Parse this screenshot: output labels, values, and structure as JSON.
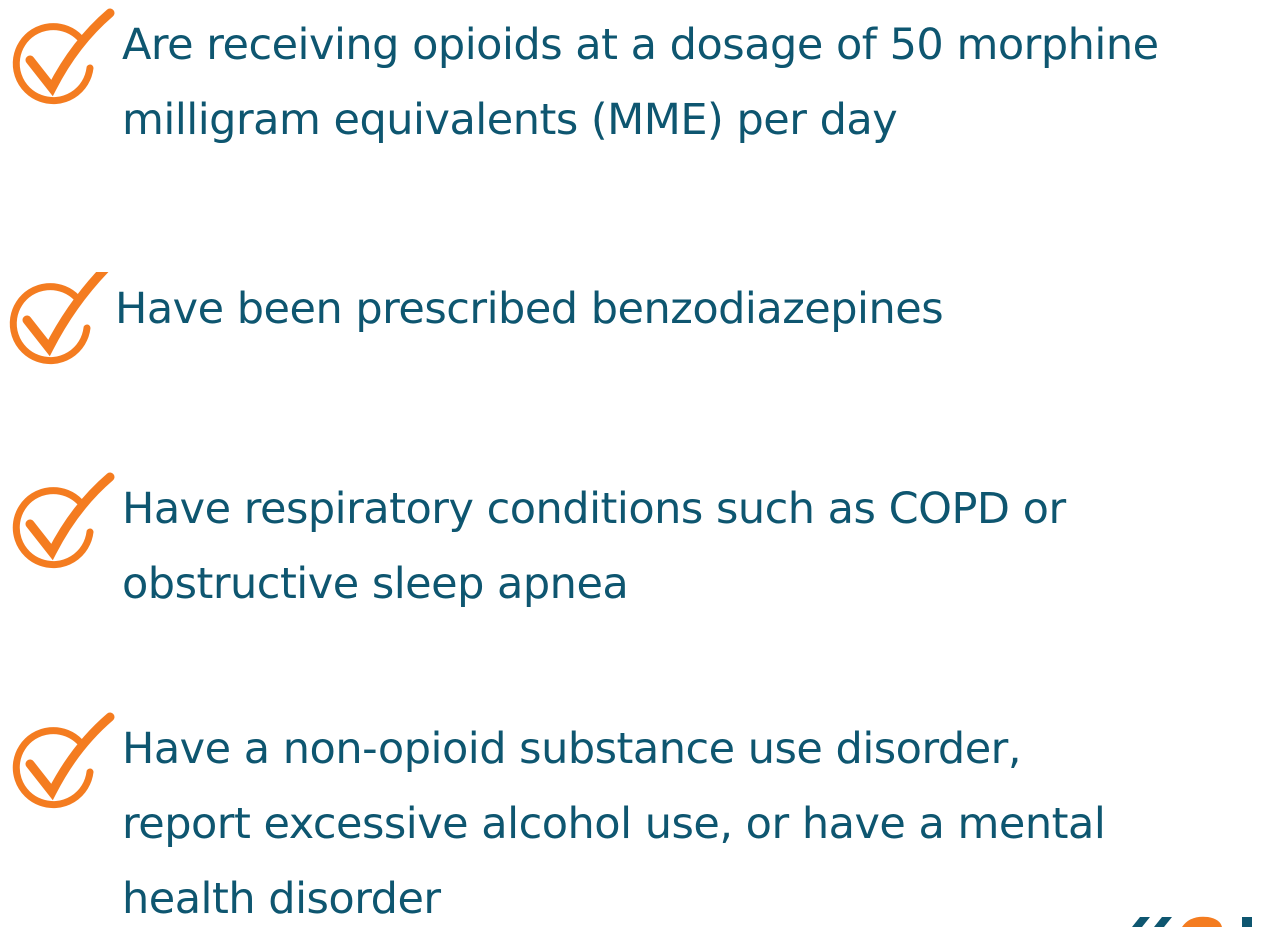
{
  "items": [
    {
      "lines": [
        "Are receiving opioids at a dosage of 50 morphine",
        "milligram equivalents (MME) per day"
      ]
    },
    {
      "lines": [
        "Have been prescribed benzodiazepines"
      ]
    },
    {
      "lines": [
        "Have respiratory conditions such as COPD or",
        "obstructive sleep apnea"
      ]
    },
    {
      "lines": [
        "Have a non-opioid substance use disorder,",
        "report excessive alcohol use, or have a mental",
        "health disorder"
      ]
    }
  ]
}
